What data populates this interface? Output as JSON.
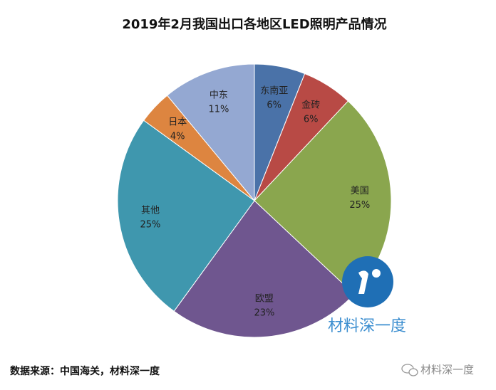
{
  "chart_data": {
    "type": "pie",
    "title": "2019年2月我国出口各地区LED照明产品情况",
    "categories": [
      "东南亚",
      "金砖",
      "美国",
      "欧盟",
      "其他",
      "日本",
      "中东"
    ],
    "values": [
      6,
      6,
      25,
      23,
      25,
      4,
      11
    ],
    "value_labels": [
      "6%",
      "6%",
      "25%",
      "23%",
      "25%",
      "4%",
      "11%"
    ],
    "colors": [
      "#4a72a8",
      "#b84a45",
      "#8aa64e",
      "#6f568f",
      "#3f97ae",
      "#dd8540",
      "#94a8d2"
    ],
    "source": "数据来源：中国海关，材料深一度",
    "watermark": "材料深一度",
    "brand": "材料深一度"
  }
}
